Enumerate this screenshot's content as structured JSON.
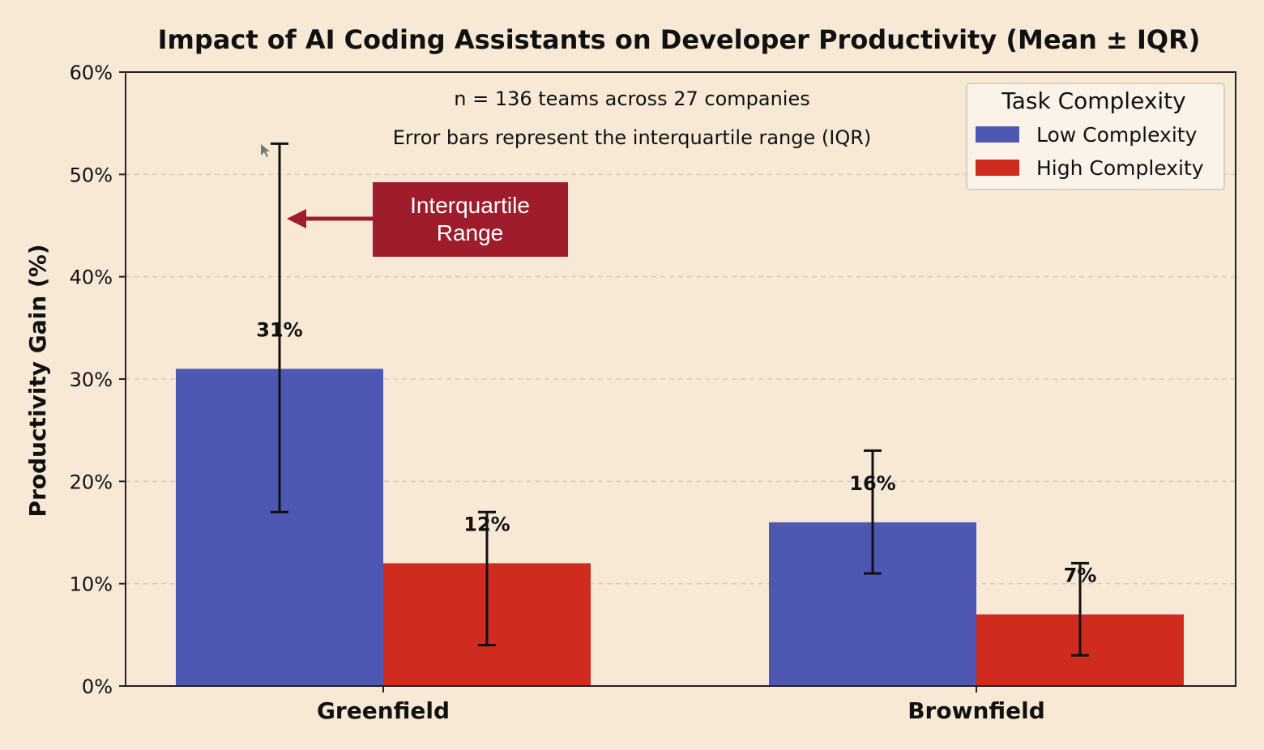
{
  "chart_data": {
    "type": "bar",
    "title": "Impact of AI Coding Assistants on Developer Productivity (Mean ± IQR)",
    "xlabel": "",
    "ylabel": "Productivity Gain (%)",
    "ylim": [
      0,
      60
    ],
    "yticks": [
      "0%",
      "10%",
      "20%",
      "30%",
      "40%",
      "50%",
      "60%"
    ],
    "ytick_values": [
      0,
      10,
      20,
      30,
      40,
      50,
      60
    ],
    "grid": true,
    "categories": [
      "Greenfield",
      "Brownfield"
    ],
    "series": [
      {
        "name": "Low Complexity",
        "color": "#4e58b3",
        "values": [
          31,
          16
        ],
        "labels": [
          "31%",
          "16%"
        ],
        "iqr_low": [
          17,
          11
        ],
        "iqr_high": [
          53,
          23
        ]
      },
      {
        "name": "High Complexity",
        "color": "#d02b1f",
        "values": [
          12,
          7
        ],
        "labels": [
          "12%",
          "7%"
        ],
        "iqr_low": [
          4,
          3
        ],
        "iqr_high": [
          17,
          12
        ]
      }
    ],
    "annotations": [
      "n = 136 teams across 27 companies",
      "Error bars represent the interquartile range (IQR)"
    ],
    "legend": {
      "title": "Task Complexity",
      "position": "top-right"
    },
    "callout": {
      "line1": "Interquartile",
      "line2": "Range",
      "color": "#9e1c2c"
    }
  }
}
